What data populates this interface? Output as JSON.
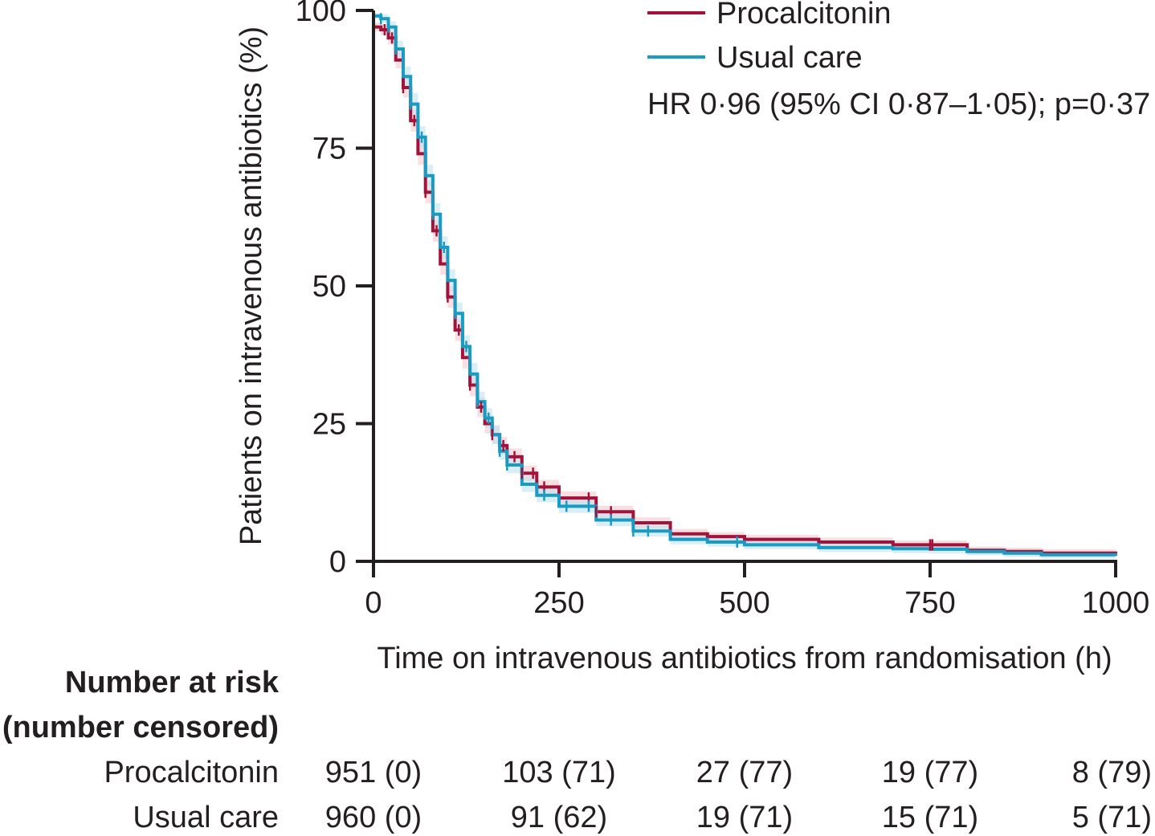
{
  "chart_data": {
    "type": "line",
    "title": "",
    "xlabel": "Time on intravenous antibiotics from randomisation (h)",
    "ylabel": "Patients on intravenous antibiotics (%)",
    "xlim": [
      0,
      1000
    ],
    "ylim": [
      0,
      100
    ],
    "xticks": [
      0,
      250,
      500,
      750,
      1000
    ],
    "xtick_labels": [
      "0",
      "250",
      "500",
      "750",
      "1000"
    ],
    "yticks": [
      0,
      25,
      50,
      75,
      100
    ],
    "ytick_labels": [
      "0",
      "25",
      "50",
      "75",
      "100"
    ],
    "grid": false,
    "legend_position": "top-right",
    "series": [
      {
        "name": "Procalcitonin",
        "color": "#a3123b",
        "band_color": "#f2c9cf",
        "x": [
          0,
          10,
          20,
          30,
          40,
          50,
          60,
          70,
          80,
          90,
          100,
          110,
          120,
          130,
          140,
          150,
          160,
          170,
          180,
          200,
          220,
          250,
          300,
          350,
          400,
          450,
          500,
          600,
          700,
          750,
          800,
          850,
          900,
          1000
        ],
        "y": [
          97,
          96.5,
          95,
          91,
          86,
          80,
          74,
          67,
          60,
          54,
          48,
          42,
          37,
          32,
          28,
          25,
          23,
          21,
          19,
          16,
          13.5,
          11.5,
          9,
          7,
          5,
          4.5,
          4,
          3.5,
          3,
          3,
          2,
          1.8,
          1.5,
          1.3
        ],
        "ci_width": [
          0.8,
          1,
          1.2,
          1.5,
          1.8,
          2,
          2,
          2,
          2,
          2,
          2,
          2,
          2,
          2,
          1.8,
          1.8,
          1.7,
          1.6,
          1.5,
          1.4,
          1.3,
          1.2,
          1.1,
          1,
          0.9,
          0.8,
          0.8,
          0.8,
          0.8,
          0.8,
          0.7,
          0.7,
          0.7,
          0.7
        ],
        "censor_x": [
          15,
          25,
          40,
          55,
          70,
          85,
          100,
          115,
          130,
          145,
          160,
          175,
          190,
          200,
          215,
          230,
          290,
          300,
          320,
          750,
          753
        ]
      },
      {
        "name": "Usual care",
        "color": "#1a9bc1",
        "band_color": "#bfe3ee",
        "x": [
          0,
          10,
          20,
          30,
          40,
          50,
          60,
          70,
          80,
          90,
          100,
          110,
          120,
          130,
          140,
          150,
          160,
          170,
          180,
          200,
          220,
          250,
          300,
          350,
          400,
          450,
          500,
          600,
          700,
          750,
          800,
          850,
          900,
          1000
        ],
        "y": [
          99,
          98.5,
          97,
          93,
          88,
          83,
          77,
          70,
          63,
          57,
          51,
          45,
          39,
          34,
          29,
          26,
          23,
          20,
          17.5,
          14,
          12,
          10,
          7.5,
          5.5,
          4,
          3.5,
          3,
          2.5,
          2.3,
          2.2,
          1.8,
          1.5,
          1.2,
          1
        ],
        "ci_width": [
          0.5,
          0.8,
          1,
          1.5,
          1.8,
          2,
          2,
          2,
          2,
          2,
          2,
          2,
          2,
          2,
          1.8,
          1.8,
          1.7,
          1.6,
          1.5,
          1.4,
          1.3,
          1.2,
          1.1,
          1,
          0.9,
          0.8,
          0.8,
          0.8,
          0.8,
          0.8,
          0.7,
          0.7,
          0.7,
          0.7
        ],
        "censor_x": [
          10,
          20,
          30,
          50,
          65,
          80,
          95,
          110,
          125,
          140,
          155,
          170,
          180,
          230,
          260,
          290,
          320,
          350,
          370,
          490
        ]
      }
    ],
    "annotation": "HR 0·96 (95% CI 0·87–1·05); p=0·37",
    "number_at_risk": {
      "title_line1": "Number at risk",
      "title_line2": "(number censored)",
      "times": [
        0,
        250,
        500,
        750,
        1000
      ],
      "rows": [
        {
          "label": "Procalcitonin",
          "values": [
            "951 (0)",
            "103 (71)",
            "27 (77)",
            "19 (77)",
            "8 (79)"
          ]
        },
        {
          "label": "Usual care",
          "values": [
            "960 (0)",
            "91 (62)",
            "19 (71)",
            "15 (71)",
            "5 (71)"
          ]
        }
      ]
    }
  }
}
